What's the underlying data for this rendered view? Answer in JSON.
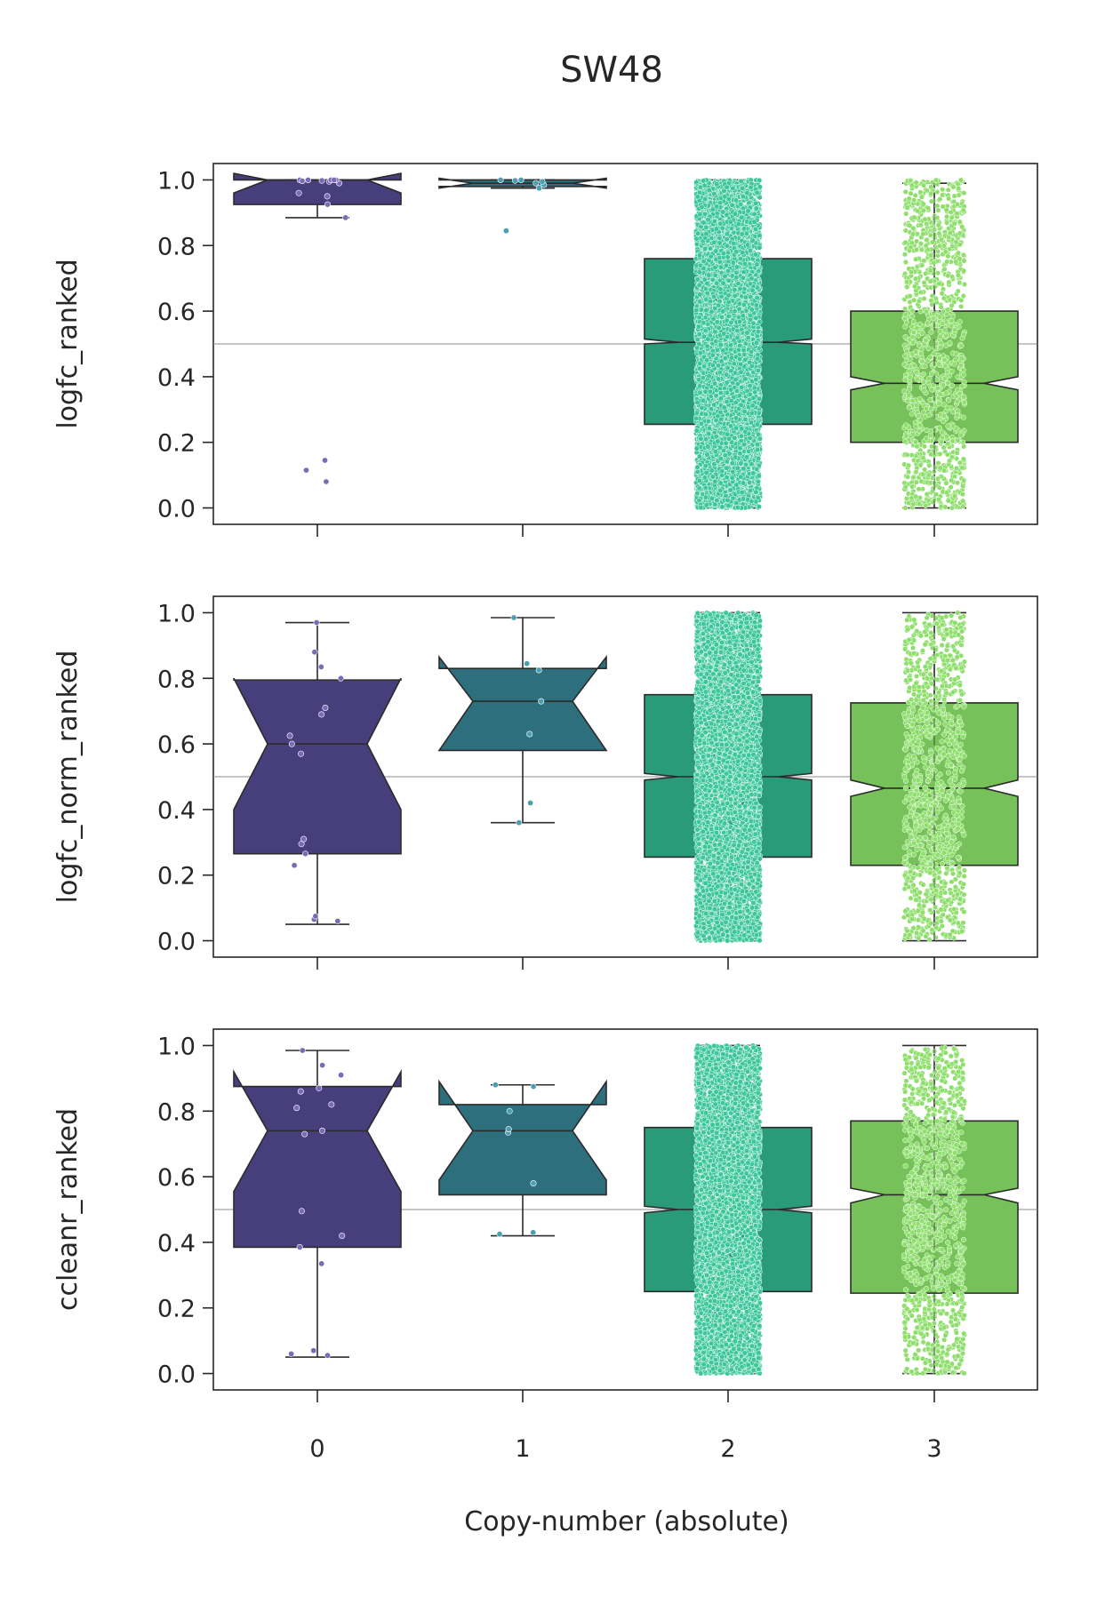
{
  "figure": {
    "title": "SW48",
    "xlabel": "Copy-number (absolute)"
  },
  "chart_data": [
    {
      "type": "box",
      "ylabel": "logfc_ranked",
      "categories": [
        "0",
        "1",
        "2",
        "3"
      ],
      "ylim": [
        -0.05,
        1.05
      ],
      "yticks": [
        0.0,
        0.2,
        0.4,
        0.6,
        0.8,
        1.0
      ],
      "reference_line": 0.5,
      "notched": true,
      "colors": [
        "#463f7c",
        "#2e6f7d",
        "#2a9b79",
        "#77c15a"
      ],
      "point_colors": [
        "#7a6ab8",
        "#4a9fb0",
        "#3bc79a",
        "#8fdf6d"
      ],
      "boxes": [
        {
          "category": "0",
          "q1": 0.925,
          "median": 1.0,
          "q3": 1.0,
          "notch_low": 0.96,
          "notch_high": 1.02,
          "whisker_low": 0.885,
          "whisker_high": 1.0,
          "n": 22,
          "points": [
            0.08,
            0.115,
            0.145,
            0.885,
            0.925,
            0.95,
            0.96,
            0.99,
            0.995,
            1.0,
            1.0,
            1.0,
            1.0,
            1.0,
            0.998,
            0.997
          ]
        },
        {
          "category": "1",
          "q1": 0.98,
          "median": 0.99,
          "q3": 1.0,
          "notch_low": 0.975,
          "notch_high": 1.005,
          "whisker_low": 0.975,
          "whisker_high": 1.0,
          "n": 9,
          "points": [
            0.845,
            0.975,
            0.985,
            0.995,
            1.0,
            1.0,
            0.99,
            0.998
          ]
        },
        {
          "category": "2",
          "q1": 0.255,
          "median": 0.505,
          "q3": 0.76,
          "notch_low": 0.5,
          "notch_high": 0.515,
          "whisker_low": 0.0,
          "whisker_high": 1.0,
          "n": 6000
        },
        {
          "category": "3",
          "q1": 0.2,
          "median": 0.38,
          "q3": 0.6,
          "notch_low": 0.36,
          "notch_high": 0.4,
          "whisker_low": 0.0,
          "whisker_high": 0.99,
          "n": 1100
        }
      ]
    },
    {
      "type": "box",
      "ylabel": "logfc_norm_ranked",
      "categories": [
        "0",
        "1",
        "2",
        "3"
      ],
      "ylim": [
        -0.05,
        1.05
      ],
      "yticks": [
        0.0,
        0.2,
        0.4,
        0.6,
        0.8,
        1.0
      ],
      "reference_line": 0.5,
      "notched": true,
      "colors": [
        "#463f7c",
        "#2e6f7d",
        "#2a9b79",
        "#77c15a"
      ],
      "point_colors": [
        "#7a6ab8",
        "#4a9fb0",
        "#3bc79a",
        "#8fdf6d"
      ],
      "boxes": [
        {
          "category": "0",
          "q1": 0.265,
          "median": 0.6,
          "q3": 0.795,
          "notch_low": 0.4,
          "notch_high": 0.8,
          "whisker_low": 0.05,
          "whisker_high": 0.97,
          "n": 22,
          "points": [
            0.06,
            0.065,
            0.075,
            0.23,
            0.265,
            0.295,
            0.31,
            0.57,
            0.6,
            0.625,
            0.69,
            0.71,
            0.8,
            0.835,
            0.88,
            0.97
          ]
        },
        {
          "category": "1",
          "q1": 0.58,
          "median": 0.73,
          "q3": 0.83,
          "notch_low": 0.58,
          "notch_high": 0.865,
          "whisker_low": 0.36,
          "whisker_high": 0.985,
          "n": 9,
          "points": [
            0.36,
            0.42,
            0.63,
            0.73,
            0.825,
            0.845,
            0.985
          ]
        },
        {
          "category": "2",
          "q1": 0.255,
          "median": 0.5,
          "q3": 0.75,
          "notch_low": 0.49,
          "notch_high": 0.51,
          "whisker_low": 0.0,
          "whisker_high": 1.0,
          "n": 6000
        },
        {
          "category": "3",
          "q1": 0.23,
          "median": 0.465,
          "q3": 0.725,
          "notch_low": 0.44,
          "notch_high": 0.49,
          "whisker_low": 0.0,
          "whisker_high": 1.0,
          "n": 1100
        }
      ]
    },
    {
      "type": "box",
      "ylabel": "ccleanr_ranked",
      "categories": [
        "0",
        "1",
        "2",
        "3"
      ],
      "ylim": [
        -0.05,
        1.05
      ],
      "yticks": [
        0.0,
        0.2,
        0.4,
        0.6,
        0.8,
        1.0
      ],
      "reference_line": 0.5,
      "notched": true,
      "colors": [
        "#463f7c",
        "#2e6f7d",
        "#2a9b79",
        "#77c15a"
      ],
      "point_colors": [
        "#7a6ab8",
        "#4a9fb0",
        "#3bc79a",
        "#8fdf6d"
      ],
      "boxes": [
        {
          "category": "0",
          "q1": 0.385,
          "median": 0.74,
          "q3": 0.875,
          "notch_low": 0.555,
          "notch_high": 0.92,
          "whisker_low": 0.05,
          "whisker_high": 0.985,
          "n": 22,
          "points": [
            0.055,
            0.06,
            0.07,
            0.335,
            0.385,
            0.42,
            0.495,
            0.73,
            0.74,
            0.81,
            0.82,
            0.86,
            0.87,
            0.91,
            0.94,
            0.985
          ]
        },
        {
          "category": "1",
          "q1": 0.545,
          "median": 0.74,
          "q3": 0.82,
          "notch_low": 0.59,
          "notch_high": 0.89,
          "whisker_low": 0.42,
          "whisker_high": 0.88,
          "n": 9,
          "points": [
            0.425,
            0.43,
            0.58,
            0.735,
            0.745,
            0.8,
            0.875,
            0.88
          ]
        },
        {
          "category": "2",
          "q1": 0.25,
          "median": 0.5,
          "q3": 0.75,
          "notch_low": 0.49,
          "notch_high": 0.51,
          "whisker_low": 0.0,
          "whisker_high": 1.0,
          "n": 6000
        },
        {
          "category": "3",
          "q1": 0.245,
          "median": 0.545,
          "q3": 0.77,
          "notch_low": 0.52,
          "notch_high": 0.565,
          "whisker_low": 0.0,
          "whisker_high": 1.0,
          "n": 1100
        }
      ]
    }
  ]
}
